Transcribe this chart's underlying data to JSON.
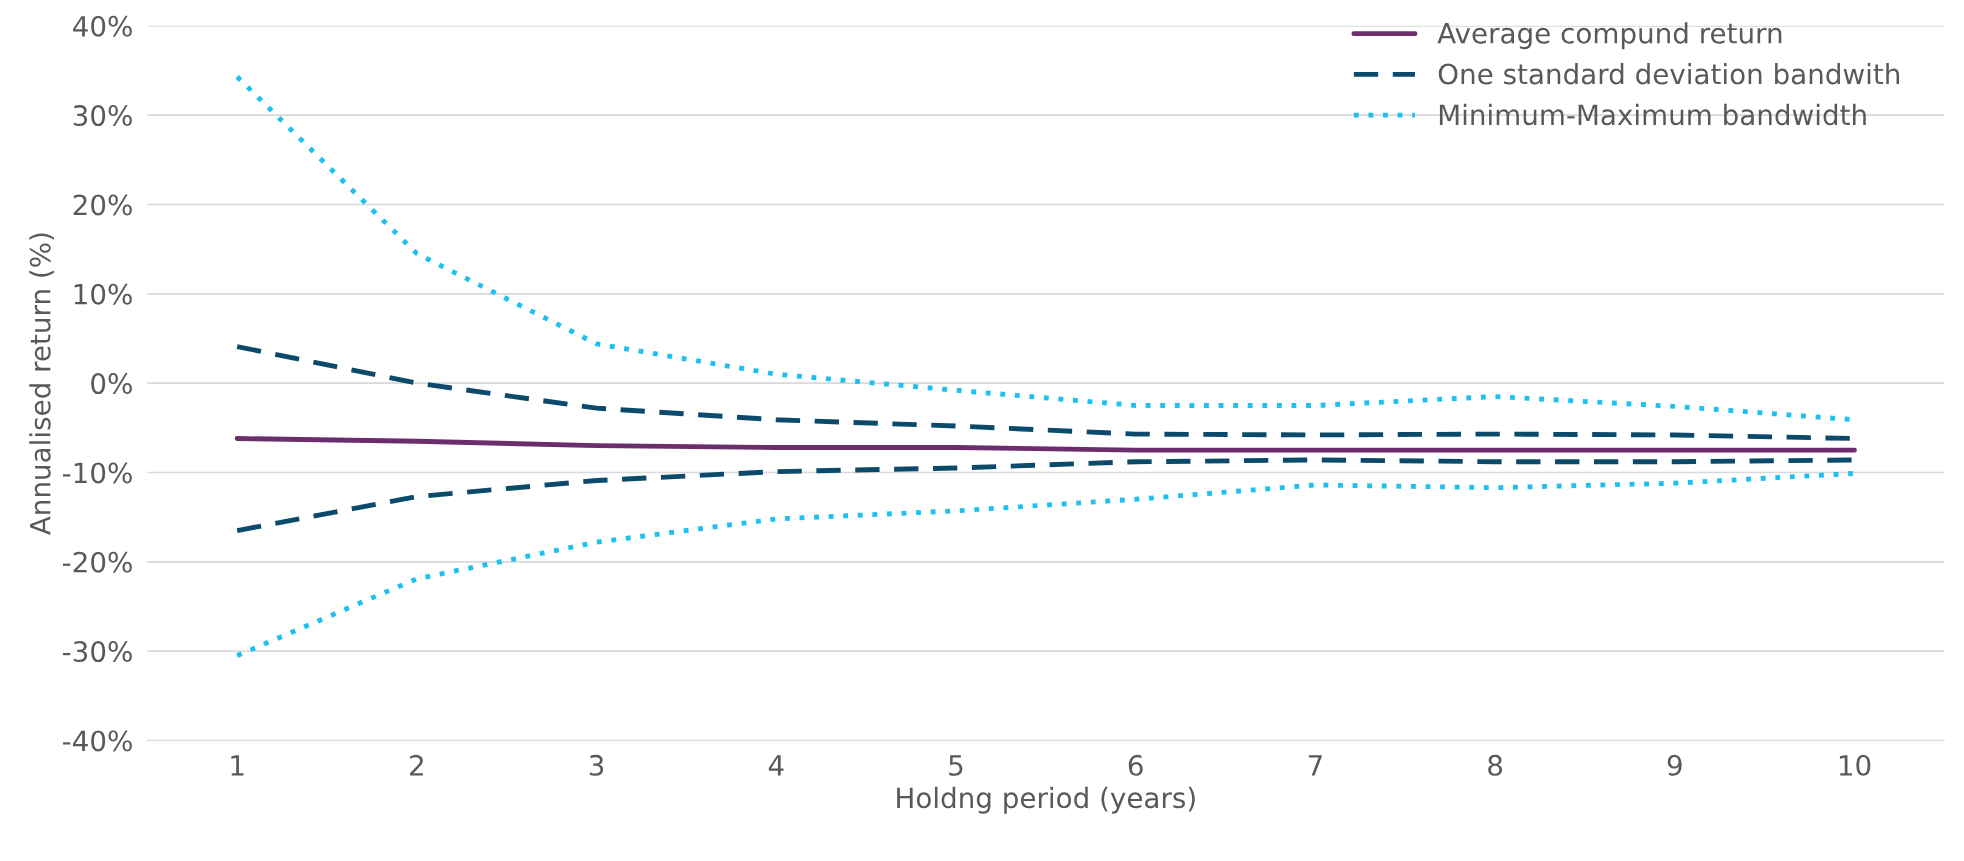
{
  "chart_data": {
    "type": "line",
    "xlabel": "Holdng period (years)",
    "ylabel": "Annualised return (%)",
    "categories": [
      "1",
      "2",
      "3",
      "4",
      "5",
      "6",
      "7",
      "8",
      "9",
      "10"
    ],
    "series": [
      {
        "name": "Average compund return",
        "color": "#6b2d6e",
        "line_style": "solid",
        "values": [
          -6.2,
          -6.5,
          -7.0,
          -7.2,
          -7.2,
          -7.5,
          -7.5,
          -7.5,
          -7.5,
          -7.5
        ]
      },
      {
        "name": "One standard deviation bandwith",
        "color": "#0b4a6b",
        "line_style": "dashed",
        "values": [
          4.1,
          0.0,
          -2.8,
          -4.1,
          -4.8,
          -5.7,
          -5.8,
          -5.7,
          -5.8,
          -6.2
        ]
      },
      {
        "color": "#0b4a6b",
        "line_style": "dashed",
        "values": [
          -16.5,
          -12.7,
          -10.9,
          -9.9,
          -9.5,
          -8.8,
          -8.6,
          -8.8,
          -8.8,
          -8.6
        ]
      },
      {
        "name": "Minimum-Maximum bandwidth",
        "color": "#1ec0f0",
        "line_style": "dotted",
        "values": [
          34.3,
          14.5,
          4.4,
          1.0,
          -0.8,
          -2.5,
          -2.5,
          -1.5,
          -2.6,
          -4.1
        ]
      },
      {
        "color": "#1ec0f0",
        "line_style": "dotted",
        "values": [
          -30.5,
          -21.9,
          -17.8,
          -15.2,
          -14.3,
          -13.0,
          -11.4,
          -11.7,
          -11.2,
          -10.1
        ]
      }
    ],
    "ylim": [
      -40,
      40
    ],
    "yticks": [
      {
        "value": -40,
        "label": "-40%"
      },
      {
        "value": -30,
        "label": "-30%"
      },
      {
        "value": -20,
        "label": "-20%"
      },
      {
        "value": -10,
        "label": "-10%"
      },
      {
        "value": 0,
        "label": "0%"
      },
      {
        "value": 10,
        "label": "10%"
      },
      {
        "value": 20,
        "label": "20%"
      },
      {
        "value": 30,
        "label": "30%"
      },
      {
        "value": 40,
        "label": "40%"
      }
    ],
    "grid": "y",
    "legend": "top right",
    "marker": "none"
  }
}
